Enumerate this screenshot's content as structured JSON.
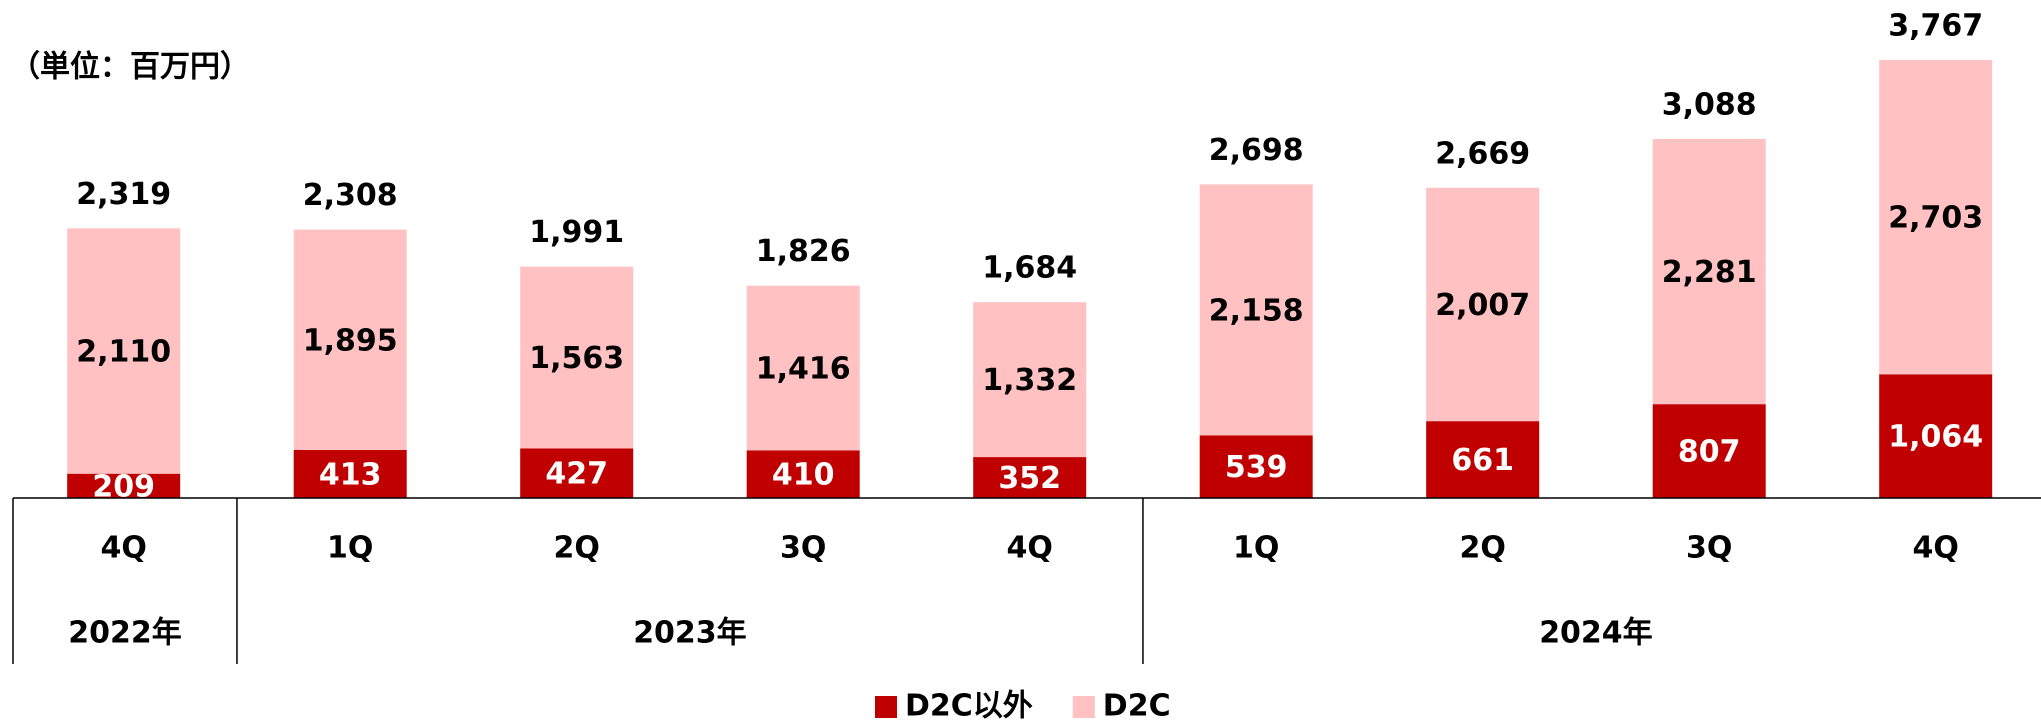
{
  "chart_data": {
    "type": "stacked_bar",
    "unit_label": "（単位：百万円）",
    "groups": [
      {
        "label": "2022年",
        "categories": [
          "4Q"
        ]
      },
      {
        "label": "2023年",
        "categories": [
          "1Q",
          "2Q",
          "3Q",
          "4Q"
        ]
      },
      {
        "label": "2024年",
        "categories": [
          "1Q",
          "2Q",
          "3Q",
          "4Q"
        ]
      }
    ],
    "series": [
      {
        "name": "D2C以外",
        "color": "#c00000",
        "label_color": "#ffffff",
        "values": [
          209,
          413,
          427,
          410,
          352,
          539,
          661,
          807,
          1064
        ],
        "value_labels": [
          "209",
          "413",
          "427",
          "410",
          "352",
          "539",
          "661",
          "807",
          "1,064"
        ]
      },
      {
        "name": "D2C",
        "color": "#ffc1c1",
        "label_color": "#000000",
        "values": [
          2110,
          1895,
          1563,
          1416,
          1332,
          2158,
          2007,
          2281,
          2703
        ],
        "value_labels": [
          "2,110",
          "1,895",
          "1,563",
          "1,416",
          "1,332",
          "2,158",
          "2,007",
          "2,281",
          "2,703"
        ]
      }
    ],
    "totals": [
      2319,
      2308,
      1991,
      1826,
      1684,
      2698,
      2669,
      3088,
      3767
    ],
    "total_labels": [
      "2,319",
      "2,308",
      "1,991",
      "1,826",
      "1,684",
      "2,698",
      "2,669",
      "3,088",
      "3,767"
    ],
    "legend": "bottom"
  }
}
